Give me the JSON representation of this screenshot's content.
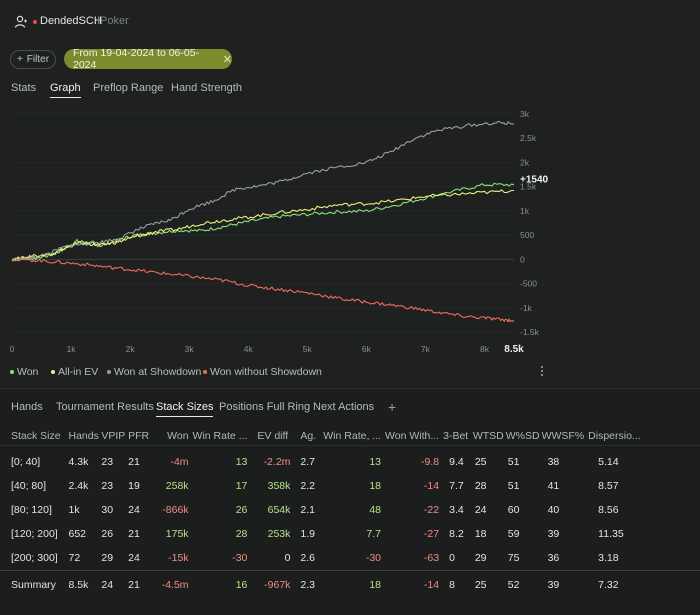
{
  "header": {
    "player": "DendedSCH",
    "site": "IPoker"
  },
  "filters": {
    "filter_label": "Filter",
    "date_range": "From 19-04-2024 to 06-05-2024"
  },
  "tabs": [
    "Stats",
    "Graph",
    "Preflop Range",
    "Hand Strength"
  ],
  "active_tab": "Graph",
  "chart_data": {
    "type": "line",
    "x_ticks": [
      "0",
      "1k",
      "2k",
      "3k",
      "4k",
      "5k",
      "6k",
      "7k",
      "8k"
    ],
    "x_max_label": "8.5k",
    "y_ticks": [
      "3k",
      "2.5k",
      "2k",
      "1.5k",
      "1k",
      "500",
      "0",
      "-500",
      "-1k",
      "-1.5k"
    ],
    "xlim": [
      0,
      8500
    ],
    "ylim": [
      -1500,
      3000
    ],
    "end_label": "+1540",
    "series": [
      {
        "name": "Won",
        "color": "#86e37a",
        "points": [
          [
            0,
            0
          ],
          [
            200,
            30
          ],
          [
            400,
            20
          ],
          [
            700,
            100
          ],
          [
            900,
            230
          ],
          [
            1100,
            380
          ],
          [
            1300,
            340
          ],
          [
            1500,
            280
          ],
          [
            1800,
            400
          ],
          [
            2100,
            500
          ],
          [
            2400,
            540
          ],
          [
            2800,
            600
          ],
          [
            3200,
            590
          ],
          [
            3600,
            680
          ],
          [
            4000,
            780
          ],
          [
            4500,
            880
          ],
          [
            5000,
            930
          ],
          [
            5500,
            980
          ],
          [
            6000,
            1000
          ],
          [
            6500,
            1120
          ],
          [
            7000,
            1270
          ],
          [
            7500,
            1410
          ],
          [
            8000,
            1540
          ],
          [
            8500,
            1540
          ]
        ]
      },
      {
        "name": "All-in EV",
        "color": "#ecf07b",
        "points": [
          [
            0,
            0
          ],
          [
            200,
            30
          ],
          [
            400,
            90
          ],
          [
            700,
            110
          ],
          [
            900,
            230
          ],
          [
            1100,
            330
          ],
          [
            1300,
            320
          ],
          [
            1500,
            290
          ],
          [
            1800,
            360
          ],
          [
            2100,
            470
          ],
          [
            2400,
            560
          ],
          [
            2800,
            620
          ],
          [
            3200,
            740
          ],
          [
            3600,
            810
          ],
          [
            4000,
            870
          ],
          [
            4500,
            960
          ],
          [
            5000,
            1030
          ],
          [
            5500,
            1120
          ],
          [
            6000,
            1150
          ],
          [
            6500,
            1210
          ],
          [
            7000,
            1300
          ],
          [
            7500,
            1340
          ],
          [
            8000,
            1380
          ],
          [
            8500,
            1420
          ]
        ]
      },
      {
        "name": "Won at Showdown",
        "color": "#9a9e9d",
        "points": [
          [
            0,
            0
          ],
          [
            300,
            10
          ],
          [
            600,
            110
          ],
          [
            900,
            260
          ],
          [
            1200,
            320
          ],
          [
            1500,
            360
          ],
          [
            1800,
            420
          ],
          [
            2100,
            600
          ],
          [
            2400,
            730
          ],
          [
            2700,
            820
          ],
          [
            3000,
            1040
          ],
          [
            3400,
            1200
          ],
          [
            3800,
            1460
          ],
          [
            4200,
            1520
          ],
          [
            4600,
            1620
          ],
          [
            5000,
            1780
          ],
          [
            5500,
            1900
          ],
          [
            6000,
            2000
          ],
          [
            6400,
            2210
          ],
          [
            6800,
            2490
          ],
          [
            7200,
            2660
          ],
          [
            7700,
            2760
          ],
          [
            8200,
            2820
          ],
          [
            8500,
            2800
          ]
        ]
      },
      {
        "name": "Won without Showdown",
        "color": "#f06a5e",
        "points": [
          [
            0,
            0
          ],
          [
            400,
            -20
          ],
          [
            800,
            -60
          ],
          [
            1200,
            -100
          ],
          [
            1600,
            -160
          ],
          [
            2000,
            -210
          ],
          [
            2400,
            -270
          ],
          [
            2800,
            -320
          ],
          [
            3200,
            -380
          ],
          [
            3600,
            -440
          ],
          [
            4000,
            -540
          ],
          [
            4400,
            -600
          ],
          [
            4800,
            -660
          ],
          [
            5200,
            -730
          ],
          [
            5600,
            -820
          ],
          [
            6000,
            -880
          ],
          [
            6400,
            -940
          ],
          [
            6800,
            -1010
          ],
          [
            7200,
            -1090
          ],
          [
            7600,
            -1170
          ],
          [
            8000,
            -1210
          ],
          [
            8300,
            -1250
          ],
          [
            8500,
            -1260
          ]
        ]
      }
    ]
  },
  "subtabs": [
    "Hands",
    "Tournament Results",
    "Stack Sizes",
    "Positions Full Ring",
    "Next Actions"
  ],
  "active_subtab": "Stack Sizes",
  "table": {
    "columns": [
      "Stack Size",
      "Hands",
      "VPIP",
      "PFR",
      "Won",
      "Win Rate ...",
      "EV diff",
      "Ag.",
      "Win Rate, ...",
      "Won With...",
      "3-Bet",
      "WTSD",
      "W%SD",
      "WWSF%",
      "Dispersio..."
    ],
    "rows": [
      [
        "[0; 40]",
        "4.3k",
        "23",
        "21",
        "-4m",
        "13",
        "-2.2m",
        "2.7",
        "13",
        "-9.8",
        "9.4",
        "25",
        "51",
        "38",
        "5.14"
      ],
      [
        "[40; 80]",
        "2.4k",
        "23",
        "19",
        "258k",
        "17",
        "358k",
        "2.2",
        "18",
        "-14",
        "7.7",
        "28",
        "51",
        "41",
        "8.57"
      ],
      [
        "[80; 120]",
        "1k",
        "30",
        "24",
        "-866k",
        "26",
        "654k",
        "2.1",
        "48",
        "-22",
        "3.4",
        "24",
        "60",
        "40",
        "8.56"
      ],
      [
        "[120; 200]",
        "652",
        "26",
        "21",
        "175k",
        "28",
        "253k",
        "1.9",
        "7.7",
        "-27",
        "8.2",
        "18",
        "59",
        "39",
        "11.35"
      ],
      [
        "[200; 300]",
        "72",
        "29",
        "24",
        "-15k",
        "-30",
        "0",
        "2.6",
        "-30",
        "-63",
        "0",
        "29",
        "75",
        "36",
        "3.18"
      ]
    ],
    "summary": [
      "Summary",
      "8.5k",
      "24",
      "21",
      "-4.5m",
      "16",
      "-967k",
      "2.3",
      "18",
      "-14",
      "8",
      "25",
      "52",
      "39",
      "7.32"
    ]
  }
}
